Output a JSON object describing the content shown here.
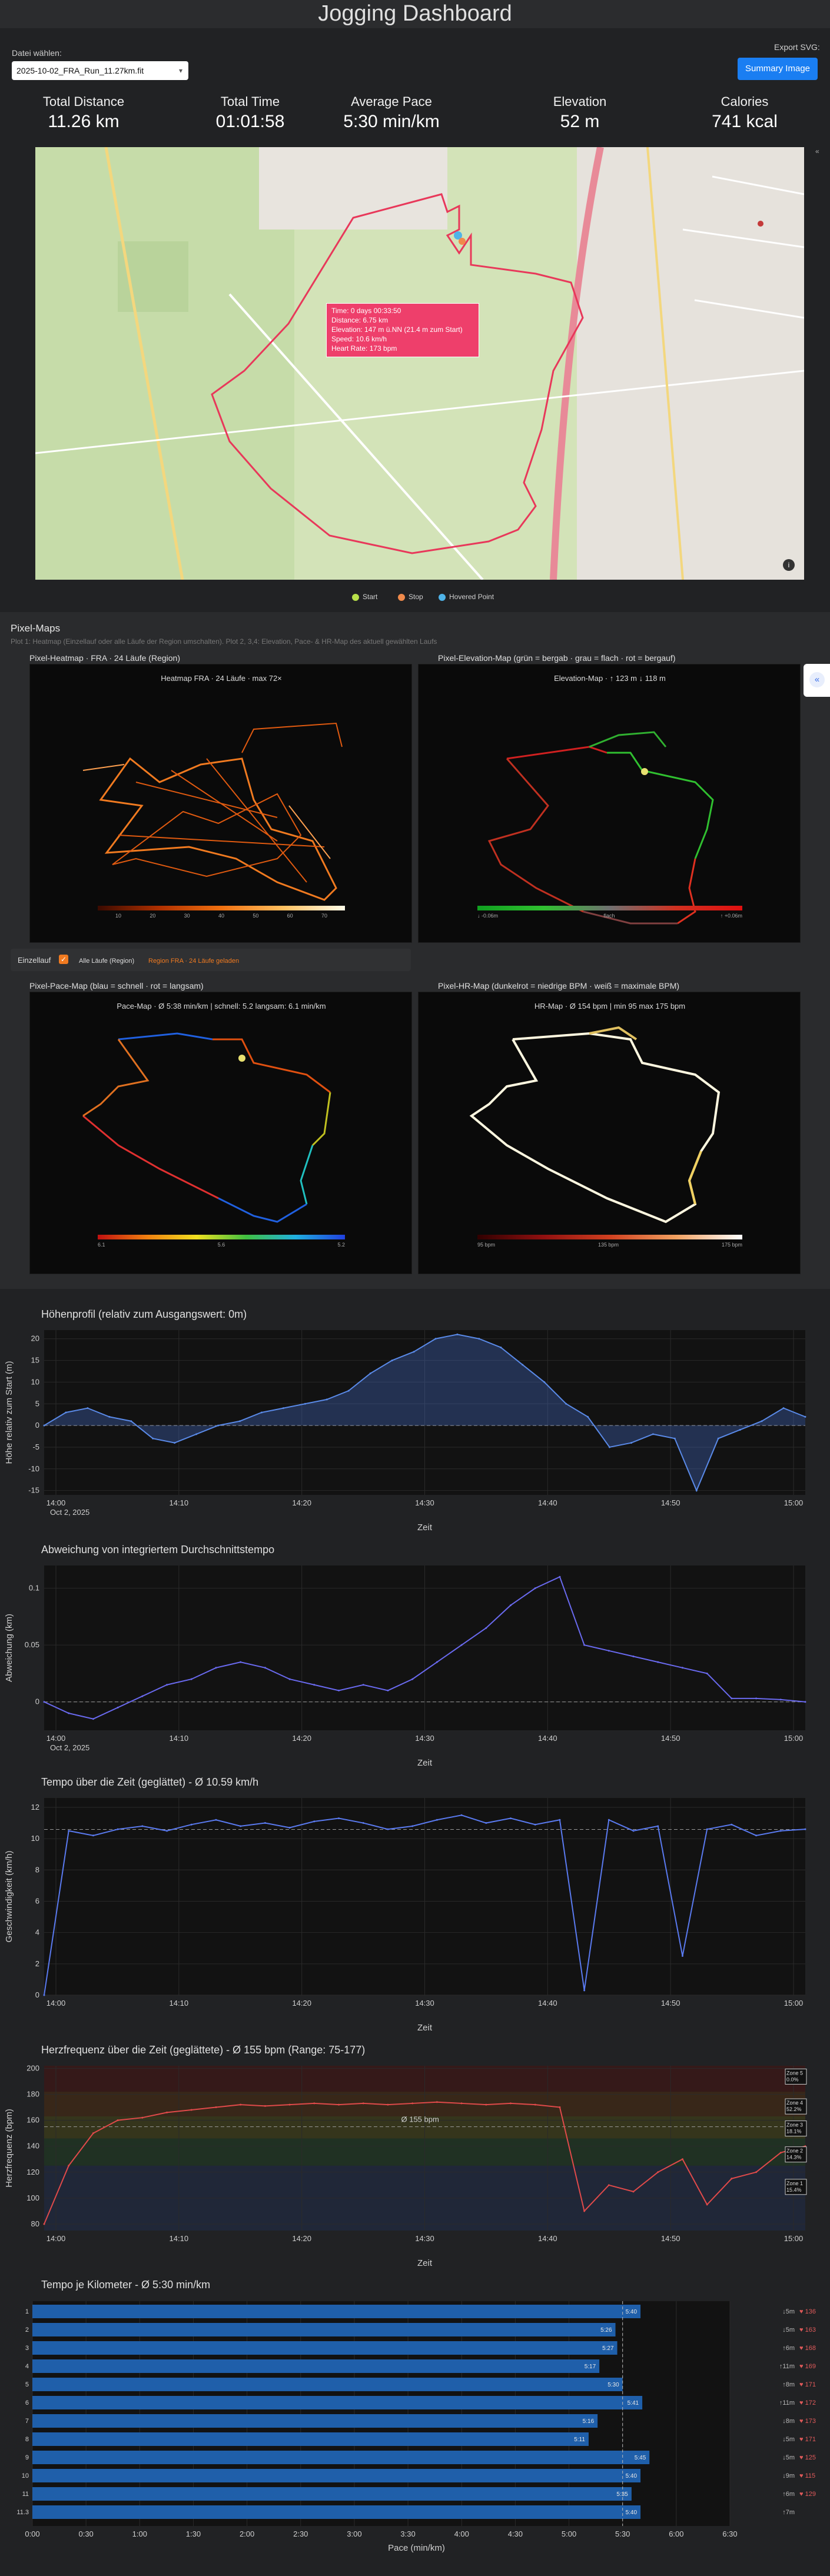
{
  "app": {
    "title": "Jogging Dashboard"
  },
  "file": {
    "label": "Datei wählen:",
    "selected": "2025-10-02_FRA_Run_11.27km.fit"
  },
  "export": {
    "label": "Export SVG:",
    "button": "Summary Image"
  },
  "stats": [
    {
      "key": "Total Distance",
      "value": "11.26 km"
    },
    {
      "key": "Total Time",
      "value": "01:01:58"
    },
    {
      "key": "Average Pace",
      "value": "5:30 min/km"
    },
    {
      "key": "Elevation",
      "value": "52 m"
    },
    {
      "key": "Calories",
      "value": "741 kcal"
    }
  ],
  "map": {
    "tooltip": [
      {
        "k": "Time:",
        "v": "0 days 00:33:50"
      },
      {
        "k": "Distance:",
        "v": "6.75 km"
      },
      {
        "k": "Elevation:",
        "v": "147 m ü.NN  (21.4 m zum Start)"
      },
      {
        "k": "Speed:",
        "v": "10.6 km/h"
      },
      {
        "k": "Heart Rate:",
        "v": "173 bpm"
      }
    ],
    "legend": [
      {
        "label": "Start",
        "color": "#b8e04a"
      },
      {
        "label": "Stop",
        "color": "#f08a4b"
      },
      {
        "label": "Hovered Point",
        "color": "#4fb3e8"
      }
    ]
  },
  "pixel": {
    "title": "Pixel-Maps",
    "subtitle": "Plot 1: Heatmap (Einzellauf oder alle Läufe der Region umschalten). Plot 2, 3,4: Elevation, Pace- & HR-Map des aktuell gewählten Laufs",
    "heat": {
      "panel": "Pixel-Heatmap · FRA · 24 Läufe (Region)",
      "title": "Heatmap FRA · 24 Läufe · max 72×",
      "ticks": [
        "10",
        "20",
        "30",
        "40",
        "50",
        "60",
        "70"
      ]
    },
    "elev": {
      "panel": "Pixel-Elevation-Map (grün = bergab · grau = flach · rot = bergauf)",
      "title": "Elevation-Map · ↑ 123 m  ↓ 118 m",
      "ticks": [
        "↓ -0.06m",
        "flach",
        "↑ +0.06m"
      ]
    },
    "pace": {
      "panel": "Pixel-Pace-Map (blau = schnell · rot = langsam)",
      "title": "Pace-Map · Ø 5:38 min/km  |  schnell: 5.2  langsam: 6.1 min/km",
      "ticks": [
        "6.1",
        "5.6",
        "5.2"
      ]
    },
    "hr": {
      "panel": "Pixel-HR-Map (dunkelrot = niedrige BPM · weiß = maximale BPM)",
      "title": "HR-Map · Ø 154 bpm  |  min 95  max 175 bpm",
      "ticks": [
        "95 bpm",
        "135 bpm",
        "175 bpm"
      ]
    },
    "toggle": {
      "einzel": "Einzellauf",
      "alle": "Alle Läufe (Region)",
      "region": "Region FRA · 24 Läufe geladen"
    }
  },
  "charts": [
    {
      "title": "Höhenprofil (relativ zum Ausgangswert: 0m)",
      "type": "area",
      "ylabel": "Höhe relativ zum Start (m)",
      "xlabel": "Zeit",
      "yticks": [
        "20",
        "15",
        "10",
        "5",
        "0",
        "-5",
        "-10",
        "-15"
      ],
      "xticks": [
        "14:00",
        "14:10",
        "14:20",
        "14:30",
        "14:40",
        "14:50",
        "15:00"
      ],
      "xsub": "Oct 2, 2025",
      "ylim": [
        -16,
        22
      ],
      "series": [
        {
          "values": [
            0,
            3,
            4,
            2,
            1,
            -3,
            -4,
            -2,
            0,
            1,
            3,
            4,
            5,
            6,
            8,
            12,
            15,
            17,
            20,
            21,
            20,
            18,
            14,
            10,
            5,
            2,
            -5,
            -4,
            -2,
            -3,
            -15,
            -3,
            -1,
            1,
            4,
            2
          ]
        }
      ]
    },
    {
      "title": "Abweichung von integriertem Durchschnittstempo",
      "type": "line",
      "ylabel": "Abweichung (km)",
      "xlabel": "Zeit",
      "yticks": [
        "0.1",
        "0.05",
        "0"
      ],
      "xticks": [
        "14:00",
        "14:10",
        "14:20",
        "14:30",
        "14:40",
        "14:50",
        "15:00"
      ],
      "xsub": "Oct 2, 2025",
      "ylim": [
        -0.025,
        0.12
      ],
      "series": [
        {
          "values": [
            0,
            -0.01,
            -0.015,
            -0.005,
            0.005,
            0.015,
            0.02,
            0.03,
            0.035,
            0.03,
            0.02,
            0.015,
            0.01,
            0.015,
            0.01,
            0.02,
            0.035,
            0.05,
            0.065,
            0.085,
            0.1,
            0.11,
            0.05,
            0.045,
            0.04,
            0.035,
            0.03,
            0.025,
            0.003,
            0.003,
            0.002,
            0
          ]
        }
      ]
    },
    {
      "title": "Tempo über die Zeit (geglättet) - Ø 10.59 km/h",
      "type": "line",
      "ylabel": "Geschwindigkeit (km/h)",
      "xlabel": "Zeit",
      "yticks": [
        "12",
        "10",
        "8",
        "6",
        "4",
        "2",
        "0"
      ],
      "xticks": [
        "14:00",
        "14:10",
        "14:20",
        "14:30",
        "14:40",
        "14:50",
        "15:00"
      ],
      "xsub": "",
      "ylim": [
        0,
        12.6
      ],
      "series": [
        {
          "values": [
            0,
            10.5,
            10.2,
            10.6,
            10.8,
            10.5,
            10.9,
            11.2,
            10.8,
            11,
            10.7,
            11.1,
            11.3,
            11,
            10.6,
            10.8,
            11.2,
            11.5,
            11,
            11.3,
            10.9,
            11.2,
            0.3,
            11.2,
            10.5,
            10.8,
            2.5,
            10.6,
            10.9,
            10.2,
            10.5,
            10.6
          ]
        }
      ]
    },
    {
      "title": "Herzfrequenz über die Zeit (geglättete) - Ø 155 bpm (Range: 75-177)",
      "type": "line",
      "ylabel": "Herzfrequenz (bpm)",
      "xlabel": "Zeit",
      "yticks": [
        "200",
        "180",
        "160",
        "140",
        "120",
        "100",
        "80"
      ],
      "xticks": [
        "14:00",
        "14:10",
        "14:20",
        "14:30",
        "14:40",
        "14:50",
        "15:00"
      ],
      "xsub": "",
      "ylim": [
        75,
        202
      ],
      "avg_label": "Ø 155 bpm",
      "zones": [
        {
          "label": "Zone 5",
          "pct": "0.0%"
        },
        {
          "label": "Zone 4",
          "pct": "52.2%"
        },
        {
          "label": "Zone 3",
          "pct": "18.1%"
        },
        {
          "label": "Zone 2",
          "pct": "14.3%"
        },
        {
          "label": "Zone 1",
          "pct": "15.4%"
        }
      ],
      "series": [
        {
          "values": [
            80,
            125,
            150,
            160,
            162,
            166,
            168,
            170,
            172,
            171,
            172,
            173,
            172,
            173,
            172,
            173,
            174,
            173,
            172,
            173,
            172,
            170,
            90,
            110,
            105,
            120,
            130,
            95,
            115,
            120,
            135,
            140
          ]
        }
      ]
    }
  ],
  "pace_km": {
    "title": "Tempo je Kilometer - Ø 5:30 min/km",
    "xlabel": "Pace (min/km)",
    "xticks": [
      "0:00",
      "0:30",
      "1:00",
      "1:30",
      "2:00",
      "2:30",
      "3:00",
      "3:30",
      "4:00",
      "4:30",
      "5:00",
      "5:30",
      "6:00",
      "6:30"
    ],
    "rows": [
      {
        "km": "1",
        "pace": "5:40",
        "val": 340,
        "elev": "↓5m",
        "hr": "♥ 136"
      },
      {
        "km": "2",
        "pace": "5:26",
        "val": 326,
        "elev": "↓5m",
        "hr": "♥ 163"
      },
      {
        "km": "3",
        "pace": "5:27",
        "val": 327,
        "elev": "↑6m",
        "hr": "♥ 168"
      },
      {
        "km": "4",
        "pace": "5:17",
        "val": 317,
        "elev": "↑11m",
        "hr": "♥ 169"
      },
      {
        "km": "5",
        "pace": "5:30",
        "val": 330,
        "elev": "↑8m",
        "hr": "♥ 171"
      },
      {
        "km": "6",
        "pace": "5:41",
        "val": 341,
        "elev": "↑11m",
        "hr": "♥ 172"
      },
      {
        "km": "7",
        "pace": "5:16",
        "val": 316,
        "elev": "↓8m",
        "hr": "♥ 173"
      },
      {
        "km": "8",
        "pace": "5:11",
        "val": 311,
        "elev": "↓5m",
        "hr": "♥ 171"
      },
      {
        "km": "9",
        "pace": "5:45",
        "val": 345,
        "elev": "↓5m",
        "hr": "♥ 125"
      },
      {
        "km": "10",
        "pace": "5:40",
        "val": 340,
        "elev": "↓9m",
        "hr": "♥ 115"
      },
      {
        "km": "11",
        "pace": "5:35",
        "val": 335,
        "elev": "↑6m",
        "hr": "♥ 129"
      },
      {
        "km": "11.3",
        "pace": "5:40",
        "val": 340,
        "elev": "↑7m",
        "hr": ""
      }
    ],
    "avg_val": 330
  }
}
